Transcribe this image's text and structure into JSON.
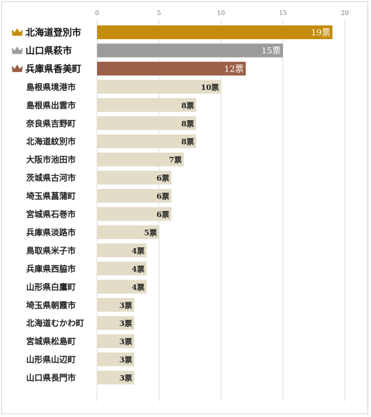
{
  "chart_data": {
    "type": "bar",
    "orientation": "horizontal",
    "x_ticks": [
      0,
      5,
      10,
      15,
      20
    ],
    "xlim": [
      0,
      20
    ],
    "grid": true,
    "value_suffix": "票",
    "categories": [
      "北海道登別市",
      "山口県萩市",
      "兵庫県香美町",
      "島根県境港市",
      "島根県出雲市",
      "奈良県吉野町",
      "北海道紋別市",
      "大阪市池田市",
      "茨城県古河市",
      "埼玉県菖蒲町",
      "宮城県石巻市",
      "兵庫県淡路市",
      "鳥取県米子市",
      "兵庫県西脇市",
      "山形県白鷹町",
      "埼玉県朝霞市",
      "北海道むかわ町",
      "宮城県松島町",
      "山形県山辺町",
      "山口県長門市"
    ],
    "values": [
      19,
      15,
      12,
      10,
      8,
      8,
      8,
      7,
      6,
      6,
      6,
      5,
      4,
      4,
      4,
      3,
      3,
      3,
      3,
      3
    ],
    "value_labels": [
      "19票",
      "15票",
      "12票",
      "10票",
      "8票",
      "8票",
      "8票",
      "7票",
      "6票",
      "6票",
      "6票",
      "5票",
      "4票",
      "4票",
      "4票",
      "3票",
      "3票",
      "3票",
      "3票",
      "3票"
    ],
    "colors": {
      "rank1": "#c48c0a",
      "rank2": "#9b9b9b",
      "rank3": "#9c6048",
      "default": "#e3dcc7",
      "grid": "#dcdcdc",
      "crown_gold": "#c48c0a",
      "crown_silver": "#9b9b9b",
      "crown_bronze": "#9c6048"
    },
    "rank_icons": [
      "crown-gold-icon",
      "crown-silver-icon",
      "crown-bronze-icon"
    ]
  }
}
